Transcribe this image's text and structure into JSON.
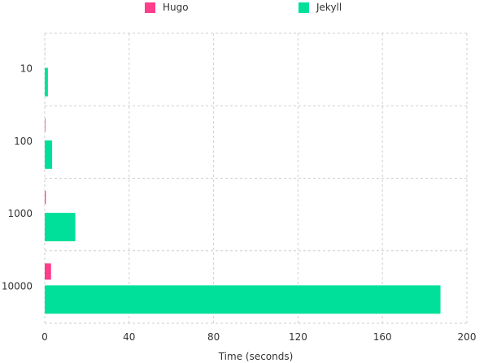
{
  "chart_data": {
    "type": "bar",
    "orientation": "horizontal",
    "categories": [
      "10",
      "100",
      "1000",
      "10000"
    ],
    "series": [
      {
        "name": "Hugo",
        "color": "#ff3d8b",
        "values": [
          0.05,
          0.3,
          0.5,
          3
        ]
      },
      {
        "name": "Jekyll",
        "color": "#00e09a",
        "values": [
          1.5,
          3.5,
          14.5,
          187.5
        ]
      }
    ],
    "xlabel": "Time (seconds)",
    "ylabel": "",
    "xlim": [
      0,
      200
    ],
    "xticks": [
      "0",
      "40",
      "80",
      "120",
      "160",
      "200"
    ],
    "grid": true,
    "legend": "top"
  }
}
